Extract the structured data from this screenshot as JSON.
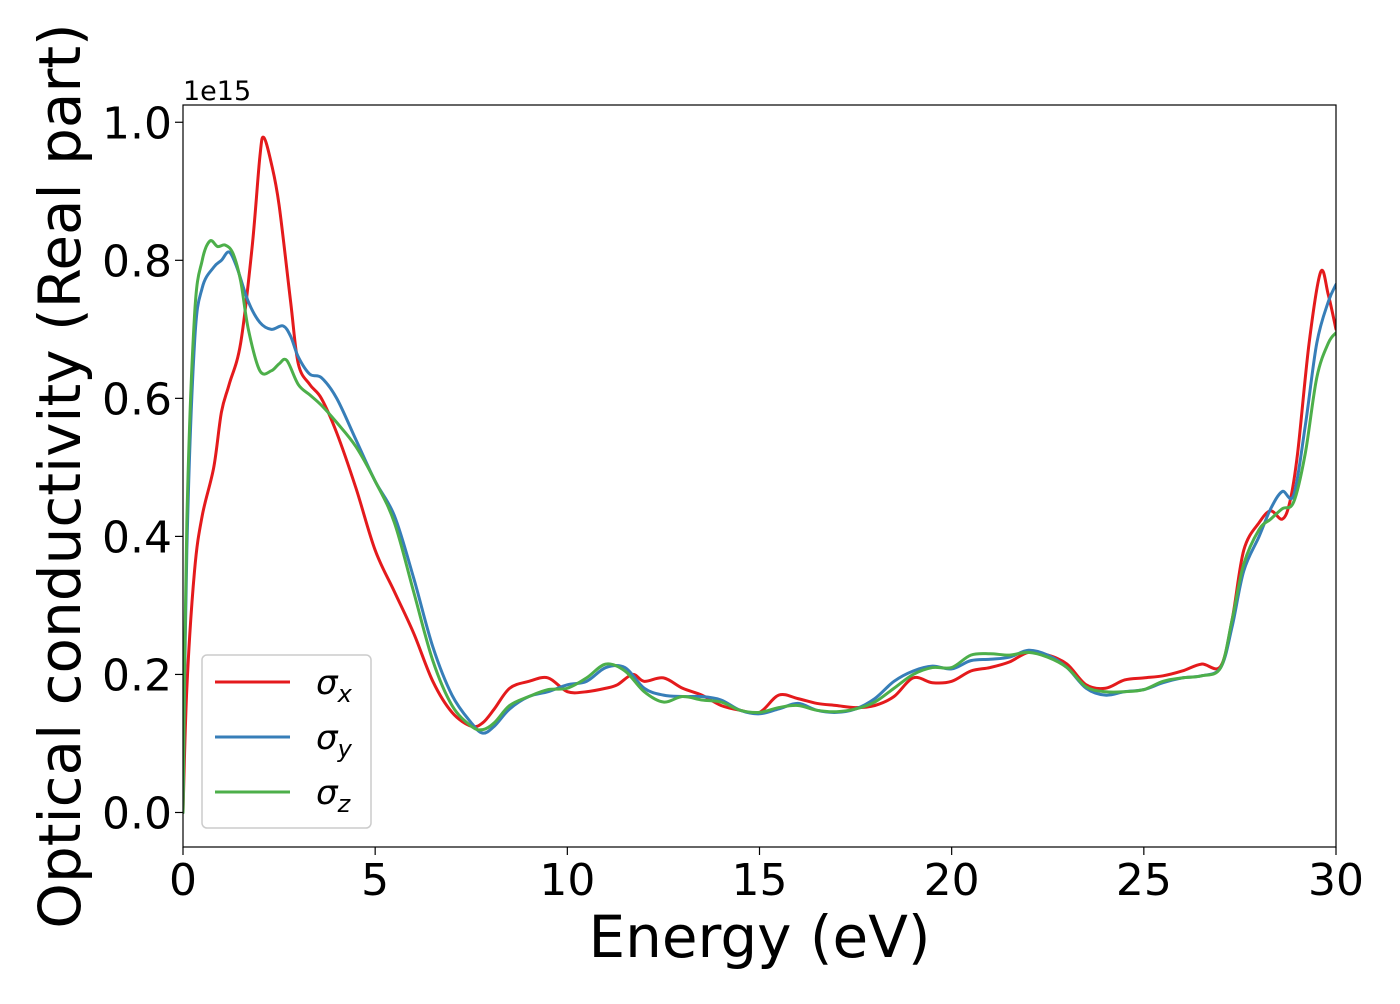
{
  "chart_data": {
    "type": "line",
    "title": "",
    "xlabel": "Energy (eV)",
    "ylabel": "Optical conductivity (Real part)",
    "y_offset_text": "1e15",
    "xlim": [
      0,
      30
    ],
    "ylim": [
      -0.05,
      1.025
    ],
    "x_ticks": [
      0,
      5,
      10,
      15,
      20,
      25,
      30
    ],
    "x_tick_labels": [
      "0",
      "5",
      "10",
      "15",
      "20",
      "25",
      "30"
    ],
    "y_ticks": [
      0.0,
      0.2,
      0.4,
      0.6,
      0.8,
      1.0
    ],
    "y_tick_labels": [
      "0.0",
      "0.2",
      "0.4",
      "0.6",
      "0.8",
      "1.0"
    ],
    "grid": false,
    "legend_position": "lower-left",
    "series": [
      {
        "name": "σx",
        "legend_base": "σ",
        "legend_sub": "x",
        "color": "#e41a1c",
        "x": [
          0,
          0.1,
          0.3,
          0.5,
          0.8,
          1.0,
          1.2,
          1.5,
          1.8,
          2.0,
          2.1,
          2.3,
          2.5,
          2.8,
          3.0,
          3.3,
          3.6,
          4.0,
          4.5,
          5.0,
          5.5,
          6.0,
          6.5,
          7.0,
          7.5,
          7.8,
          8.1,
          8.5,
          9.0,
          9.5,
          10.0,
          10.5,
          11.0,
          11.3,
          11.7,
          12.0,
          12.5,
          13.0,
          13.5,
          14.0,
          14.5,
          15.0,
          15.5,
          16.0,
          16.5,
          17.0,
          17.5,
          18.0,
          18.5,
          19.0,
          19.5,
          20.0,
          20.5,
          21.0,
          21.5,
          22.0,
          22.5,
          23.0,
          23.5,
          24.0,
          24.5,
          25.0,
          25.5,
          26.0,
          26.5,
          27.0,
          27.3,
          27.6,
          28.0,
          28.3,
          28.6,
          28.8,
          29.0,
          29.3,
          29.6,
          29.8,
          30.0
        ],
        "y": [
          0.0,
          0.18,
          0.35,
          0.43,
          0.5,
          0.58,
          0.62,
          0.68,
          0.82,
          0.95,
          0.978,
          0.94,
          0.88,
          0.74,
          0.65,
          0.62,
          0.6,
          0.55,
          0.47,
          0.38,
          0.32,
          0.26,
          0.19,
          0.145,
          0.125,
          0.13,
          0.15,
          0.18,
          0.19,
          0.195,
          0.175,
          0.175,
          0.18,
          0.185,
          0.2,
          0.19,
          0.195,
          0.18,
          0.17,
          0.155,
          0.148,
          0.145,
          0.17,
          0.165,
          0.158,
          0.155,
          0.152,
          0.155,
          0.168,
          0.195,
          0.188,
          0.19,
          0.205,
          0.21,
          0.218,
          0.232,
          0.228,
          0.215,
          0.185,
          0.18,
          0.192,
          0.195,
          0.198,
          0.205,
          0.215,
          0.212,
          0.28,
          0.38,
          0.42,
          0.437,
          0.425,
          0.45,
          0.52,
          0.68,
          0.783,
          0.75,
          0.7
        ]
      },
      {
        "name": "σy",
        "legend_base": "σ",
        "legend_sub": "y",
        "color": "#377eb8",
        "x": [
          0,
          0.1,
          0.3,
          0.5,
          0.8,
          1.0,
          1.2,
          1.4,
          1.7,
          2.0,
          2.3,
          2.6,
          2.8,
          3.0,
          3.3,
          3.6,
          4.0,
          4.5,
          5.0,
          5.5,
          6.0,
          6.5,
          7.0,
          7.5,
          7.8,
          8.1,
          8.5,
          9.0,
          9.5,
          10.0,
          10.5,
          11.0,
          11.5,
          12.0,
          12.5,
          13.0,
          13.5,
          14.0,
          14.5,
          15.0,
          15.5,
          16.0,
          16.5,
          17.0,
          17.5,
          18.0,
          18.5,
          19.0,
          19.5,
          20.0,
          20.5,
          21.0,
          21.5,
          22.0,
          22.5,
          23.0,
          23.5,
          24.0,
          24.5,
          25.0,
          25.5,
          26.0,
          26.5,
          27.0,
          27.3,
          27.6,
          28.0,
          28.3,
          28.6,
          28.9,
          29.2,
          29.5,
          29.8,
          30.0
        ],
        "y": [
          0.0,
          0.38,
          0.68,
          0.76,
          0.79,
          0.8,
          0.812,
          0.79,
          0.74,
          0.71,
          0.7,
          0.705,
          0.69,
          0.66,
          0.635,
          0.63,
          0.6,
          0.54,
          0.48,
          0.43,
          0.34,
          0.24,
          0.17,
          0.13,
          0.115,
          0.125,
          0.15,
          0.168,
          0.175,
          0.185,
          0.19,
          0.21,
          0.21,
          0.18,
          0.17,
          0.168,
          0.168,
          0.163,
          0.148,
          0.143,
          0.15,
          0.158,
          0.148,
          0.145,
          0.15,
          0.165,
          0.19,
          0.205,
          0.212,
          0.208,
          0.22,
          0.222,
          0.225,
          0.235,
          0.228,
          0.21,
          0.18,
          0.17,
          0.175,
          0.178,
          0.188,
          0.195,
          0.198,
          0.21,
          0.27,
          0.35,
          0.4,
          0.44,
          0.465,
          0.46,
          0.56,
          0.68,
          0.74,
          0.765
        ]
      },
      {
        "name": "σz",
        "legend_base": "σ",
        "legend_sub": "z",
        "color": "#4daf4a",
        "x": [
          0,
          0.1,
          0.3,
          0.5,
          0.7,
          0.9,
          1.1,
          1.3,
          1.5,
          1.7,
          2.0,
          2.3,
          2.5,
          2.7,
          3.0,
          3.3,
          3.6,
          4.0,
          4.5,
          5.0,
          5.5,
          6.0,
          6.5,
          7.0,
          7.5,
          7.8,
          8.1,
          8.5,
          9.0,
          9.5,
          10.0,
          10.5,
          11.0,
          11.5,
          12.0,
          12.5,
          13.0,
          13.5,
          14.0,
          14.5,
          15.0,
          15.5,
          16.0,
          16.5,
          17.0,
          17.5,
          18.0,
          18.5,
          19.0,
          19.5,
          20.0,
          20.5,
          21.0,
          21.5,
          22.0,
          22.5,
          23.0,
          23.5,
          24.0,
          24.5,
          25.0,
          25.5,
          26.0,
          26.5,
          27.0,
          27.3,
          27.6,
          28.0,
          28.3,
          28.6,
          28.9,
          29.2,
          29.5,
          29.8,
          30.0
        ],
        "y": [
          0.0,
          0.42,
          0.72,
          0.8,
          0.828,
          0.82,
          0.822,
          0.81,
          0.77,
          0.7,
          0.64,
          0.64,
          0.65,
          0.655,
          0.62,
          0.605,
          0.59,
          0.565,
          0.53,
          0.48,
          0.42,
          0.32,
          0.22,
          0.155,
          0.125,
          0.12,
          0.13,
          0.155,
          0.168,
          0.178,
          0.18,
          0.195,
          0.215,
          0.205,
          0.175,
          0.16,
          0.168,
          0.163,
          0.16,
          0.148,
          0.145,
          0.152,
          0.155,
          0.148,
          0.146,
          0.15,
          0.16,
          0.18,
          0.2,
          0.21,
          0.21,
          0.228,
          0.23,
          0.228,
          0.232,
          0.225,
          0.21,
          0.182,
          0.175,
          0.175,
          0.178,
          0.19,
          0.195,
          0.198,
          0.21,
          0.28,
          0.36,
          0.41,
          0.425,
          0.44,
          0.45,
          0.52,
          0.63,
          0.68,
          0.695
        ]
      }
    ]
  }
}
